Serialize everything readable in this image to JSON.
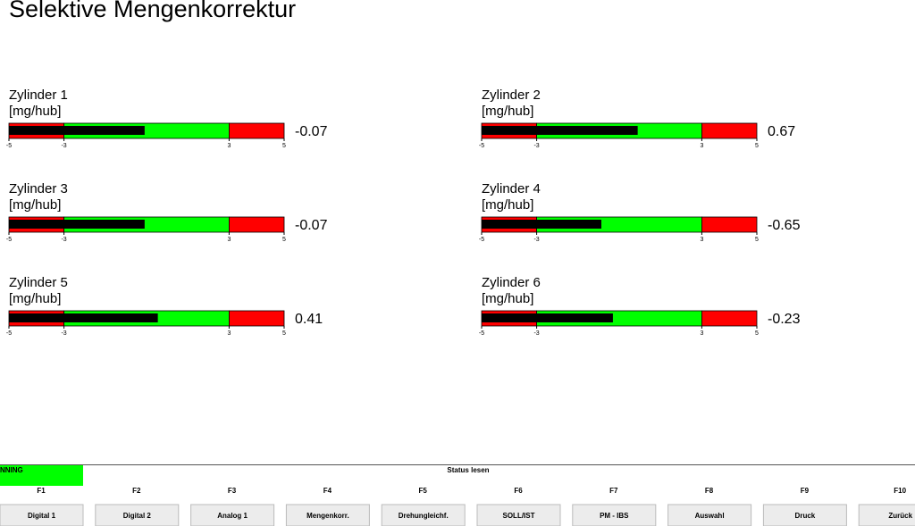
{
  "title": "Selektive Mengenkorrektur",
  "zone_colors": [
    "#ff0000",
    "#00ff00",
    "#ff0000"
  ],
  "bar_color": "#000000",
  "gauges": [
    {
      "label": "Zylinder 1",
      "unit": "[mg/hub]",
      "value": -0.07,
      "ticks": [
        -5,
        -3,
        3,
        5
      ]
    },
    {
      "label": "Zylinder 2",
      "unit": "[mg/hub]",
      "value": 0.67,
      "ticks": [
        -5,
        -3,
        3,
        5
      ]
    },
    {
      "label": "Zylinder 3",
      "unit": "[mg/hub]",
      "value": -0.07,
      "ticks": [
        -5,
        -3,
        3,
        5
      ]
    },
    {
      "label": "Zylinder 4",
      "unit": "[mg/hub]",
      "value": -0.65,
      "ticks": [
        -5,
        -3,
        3,
        5
      ]
    },
    {
      "label": "Zylinder 5",
      "unit": "[mg/hub]",
      "value": 0.41,
      "ticks": [
        -5,
        -3,
        3,
        5
      ]
    },
    {
      "label": "Zylinder 6",
      "unit": "[mg/hub]",
      "value": -0.23,
      "ticks": [
        -5,
        -3,
        3,
        5
      ]
    }
  ],
  "status": {
    "state": "NNING",
    "label": "Status lesen"
  },
  "function_keys": [
    {
      "key": "F1",
      "button": "Digital 1"
    },
    {
      "key": "F2",
      "button": "Digital 2"
    },
    {
      "key": "F3",
      "button": "Analog 1"
    },
    {
      "key": "F4",
      "button": "Mengenkorr."
    },
    {
      "key": "F5",
      "button": "Drehungleichf."
    },
    {
      "key": "F6",
      "button": "SOLL/IST"
    },
    {
      "key": "F7",
      "button": "PM - IBS"
    },
    {
      "key": "F8",
      "button": "Auswahl"
    },
    {
      "key": "F9",
      "button": "Druck"
    },
    {
      "key": "F10",
      "button": "Zurück"
    }
  ]
}
